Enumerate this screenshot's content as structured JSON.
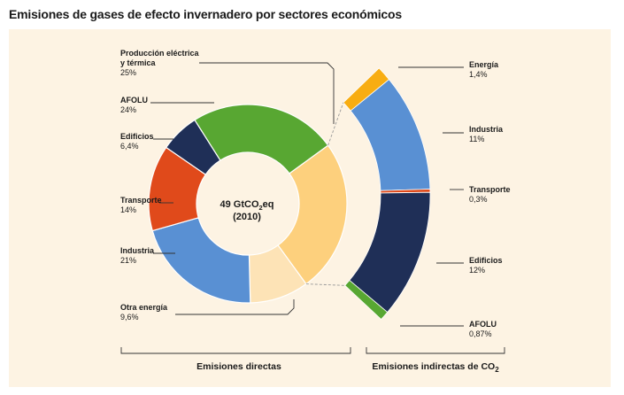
{
  "title": "Emisiones de gases de efecto invernadero por sectores económicos",
  "center_label": {
    "line1_main": "49 GtCO",
    "line1_sub": "2",
    "line1_end": "eq",
    "line2": "(2010)"
  },
  "group_labels": {
    "direct": "Emisiones directas",
    "indirect_main": "Emisiones indirectas de CO",
    "indirect_sub": "2"
  },
  "colors": {
    "panel": "#fdf3e3",
    "produccion": "#fdd07d",
    "afolu": "#58a732",
    "edificios": "#1f2f57",
    "transporte": "#e04a1b",
    "industria": "#5990d3",
    "otra_energia": "#fde3b6",
    "energia": "#f8ad12"
  },
  "chart_data": [
    {
      "type": "pie",
      "name": "Emisiones directas",
      "center_text": "49 GtCO2eq (2010)",
      "slices": [
        {
          "key": "produccion",
          "label_lines": [
            "Producción eléctrica",
            "y térmica"
          ],
          "value": 25,
          "display": "25%"
        },
        {
          "key": "otra_energia",
          "label_lines": [
            "Otra energía"
          ],
          "value": 9.6,
          "display": "9,6%"
        },
        {
          "key": "industria",
          "label_lines": [
            "Industria"
          ],
          "value": 21,
          "display": "21%"
        },
        {
          "key": "transporte",
          "label_lines": [
            "Transporte"
          ],
          "value": 14,
          "display": "14%"
        },
        {
          "key": "edificios",
          "label_lines": [
            "Edificios"
          ],
          "value": 6.4,
          "display": "6,4%"
        },
        {
          "key": "afolu",
          "label_lines": [
            "AFOLU"
          ],
          "value": 24,
          "display": "24%"
        }
      ]
    },
    {
      "type": "bar",
      "name": "Emisiones indirectas de CO2",
      "segments": [
        {
          "key": "energia",
          "label": "Energía",
          "value": 1.4,
          "display": "1,4%"
        },
        {
          "key": "industria",
          "label": "Industria",
          "value": 11,
          "display": "11%"
        },
        {
          "key": "transporte",
          "label": "Transporte",
          "value": 0.3,
          "display": "0,3%"
        },
        {
          "key": "edificios",
          "label": "Edificios",
          "value": 12,
          "display": "12%"
        },
        {
          "key": "afolu",
          "label": "AFOLU",
          "value": 0.87,
          "display": "0,87%"
        }
      ]
    }
  ]
}
